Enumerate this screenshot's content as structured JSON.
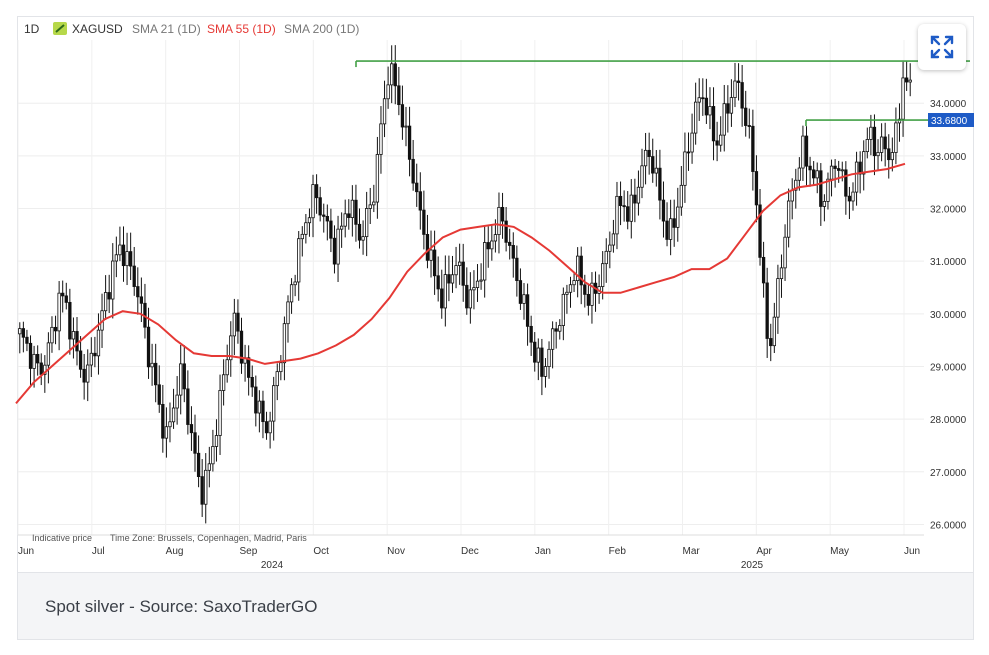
{
  "legend": {
    "timeframe": "1D",
    "symbol": "XAGUSD",
    "sma21": "SMA 21 (1D)",
    "sma55": "SMA 55 (1D)",
    "sma200": "SMA 200 (1D)"
  },
  "footer_note": {
    "price": "Indicative price",
    "timezone": "Time Zone: Brussels, Copenhagen, Madrid, Paris"
  },
  "caption": "Spot silver - Source: SaxoTraderGO",
  "current_price_label": "33.6800",
  "colors": {
    "candle": "#111111",
    "sma55": "#e53935",
    "level_line": "#43a047",
    "price_tag": "#1e5bc6",
    "expand_icon": "#1e5bc6"
  },
  "icons": {
    "expand": "expand-arrows-icon",
    "symbol": "silver-instrument-icon"
  },
  "chart_data": {
    "type": "candlestick",
    "title": "",
    "ylim": [
      25.8,
      35.2
    ],
    "y_ticks": [
      "26.0000",
      "27.0000",
      "28.0000",
      "29.0000",
      "30.0000",
      "31.0000",
      "32.0000",
      "33.0000",
      "34.0000"
    ],
    "x_months": [
      "Jun",
      "Jul",
      "Aug",
      "Sep",
      "Oct",
      "Nov",
      "Dec",
      "Jan",
      "Feb",
      "Mar",
      "Apr",
      "May",
      "Jun"
    ],
    "x_years": [
      "2024",
      "2025"
    ],
    "close_series": [
      29.6,
      29.4,
      29.1,
      28.9,
      29.2,
      29.7,
      30.4,
      30.1,
      29.5,
      29.0,
      28.8,
      29.3,
      29.8,
      30.4,
      30.9,
      31.3,
      31.0,
      30.7,
      30.2,
      29.4,
      28.8,
      28.1,
      27.6,
      28.3,
      28.9,
      28.2,
      27.4,
      26.6,
      26.9,
      27.6,
      28.4,
      29.3,
      29.9,
      29.4,
      28.8,
      28.5,
      28.0,
      27.8,
      28.5,
      29.3,
      30.1,
      30.8,
      31.4,
      31.9,
      32.3,
      32.0,
      31.6,
      31.2,
      31.6,
      32.1,
      31.8,
      31.4,
      31.9,
      32.4,
      33.6,
      34.6,
      34.4,
      33.8,
      33.1,
      32.5,
      31.7,
      31.2,
      30.7,
      30.3,
      30.6,
      31.0,
      30.7,
      30.2,
      30.5,
      30.9,
      31.3,
      31.6,
      31.9,
      31.3,
      30.8,
      30.3,
      29.7,
      29.2,
      28.9,
      29.3,
      29.7,
      30.1,
      30.5,
      30.9,
      30.6,
      30.2,
      30.5,
      30.8,
      31.3,
      31.9,
      32.2,
      31.8,
      32.3,
      32.8,
      33.1,
      32.6,
      31.9,
      31.4,
      31.9,
      32.6,
      33.3,
      33.9,
      34.2,
      33.7,
      33.2,
      33.6,
      34.1,
      34.4,
      34.0,
      33.3,
      32.2,
      30.4,
      29.3,
      30.2,
      31.3,
      32.1,
      32.7,
      33.1,
      32.8,
      32.5,
      32.1,
      32.6,
      33.0,
      32.4,
      32.2,
      32.6,
      33.1,
      33.4,
      33.1,
      33.2,
      33.0,
      33.4,
      34.6,
      34.2
    ],
    "sma55": [
      28.3,
      28.7,
      29.0,
      29.3,
      29.6,
      29.9,
      30.05,
      30.0,
      29.8,
      29.5,
      29.25,
      29.2,
      29.2,
      29.15,
      29.05,
      29.1,
      29.15,
      29.25,
      29.4,
      29.6,
      29.9,
      30.3,
      30.8,
      31.15,
      31.45,
      31.6,
      31.65,
      31.7,
      31.65,
      31.45,
      31.2,
      30.9,
      30.6,
      30.4,
      30.4,
      30.5,
      30.6,
      30.7,
      30.85,
      30.85,
      31.05,
      31.5,
      31.95,
      32.25,
      32.4,
      32.45,
      32.55,
      32.65,
      32.7,
      32.75,
      32.85
    ],
    "levels": [
      {
        "value": 34.8,
        "label": ""
      },
      {
        "value": 33.68,
        "label": "33.6800"
      }
    ]
  }
}
